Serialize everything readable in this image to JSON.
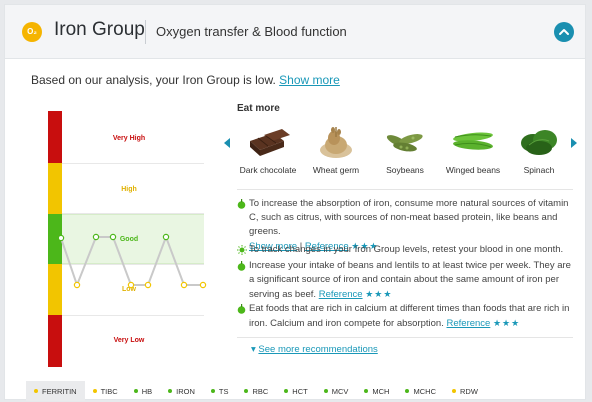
{
  "header": {
    "badge": "O₂",
    "title": "Iron Group",
    "subtitle": "Oxygen transfer & Blood function",
    "collapse_icon": "chevron-up-icon"
  },
  "summary": {
    "text": "Based on our analysis, your Iron Group is low.",
    "link": "Show more"
  },
  "gauge": {
    "zones": [
      {
        "label": "Very High",
        "color": "#c80e0e"
      },
      {
        "label": "High",
        "color": "#f2c500"
      },
      {
        "label": "Good",
        "color": "#4cb71a"
      },
      {
        "label": "Low",
        "color": "#f2c500"
      },
      {
        "label": "Very Low",
        "color": "#c80e0e"
      }
    ],
    "line_color": "#c9c9c9"
  },
  "eat_more": {
    "title": "Eat more",
    "foods": [
      "Dark chocolate",
      "Wheat germ",
      "Soybeans",
      "Winged beans",
      "Spinach"
    ]
  },
  "recommendations": [
    {
      "icon": "apple-icon",
      "text": "To increase the absorption of iron, consume more natural sources of vitamin C, such as citrus, with sources of non-meat based protein, like beans and greens.",
      "link1": "Show more",
      "separator": "|",
      "link2": "Reference",
      "stars": "★★★"
    },
    {
      "icon": "sun-icon",
      "text": "To track changes in your Iron Group levels, retest your blood in one month."
    },
    {
      "icon": "apple-icon",
      "text": "Increase your intake of beans and lentils to at least twice per week. They are a significant source of iron and contain about the same amount of iron per serving as beef.",
      "link": "Reference",
      "stars": "★★★"
    },
    {
      "icon": "apple-icon",
      "text": "Eat foods that are rich in calcium at different times than foods that are rich in iron. Calcium and iron compete for absorption.",
      "link": "Reference",
      "stars": "★★★"
    }
  ],
  "see_more": "See more recommendations",
  "tabs": [
    {
      "label": "FERRITIN",
      "color": "#f2c500",
      "active": true
    },
    {
      "label": "TIBC",
      "color": "#f2c500"
    },
    {
      "label": "HB",
      "color": "#4cb71a"
    },
    {
      "label": "IRON",
      "color": "#4cb71a"
    },
    {
      "label": "TS",
      "color": "#4cb71a"
    },
    {
      "label": "RBC",
      "color": "#4cb71a"
    },
    {
      "label": "HCT",
      "color": "#4cb71a"
    },
    {
      "label": "MCV",
      "color": "#4cb71a"
    },
    {
      "label": "MCH",
      "color": "#4cb71a"
    },
    {
      "label": "MCHC",
      "color": "#4cb71a"
    },
    {
      "label": "RDW",
      "color": "#f2c500"
    }
  ],
  "accent": "#1a98b8"
}
